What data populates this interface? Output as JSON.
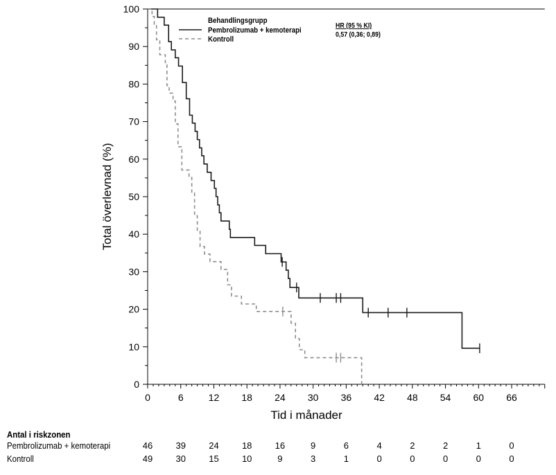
{
  "chart_data": {
    "type": "line",
    "subtype": "kaplan-meier",
    "xlabel": "Tid i månader",
    "ylabel": "Total överlevnad (%)",
    "xlim": [
      0,
      72
    ],
    "ylim": [
      0,
      100
    ],
    "xticks": [
      "0",
      "6",
      "12",
      "18",
      "24",
      "30",
      "36",
      "42",
      "48",
      "54",
      "60",
      "66"
    ],
    "yticks": [
      "0",
      "10",
      "20",
      "30",
      "40",
      "50",
      "60",
      "70",
      "80",
      "90",
      "100"
    ],
    "legend": {
      "title": "Behandlingsgrupp",
      "position": "top",
      "entries": [
        "Pembrolizumab + kemoterapi",
        "Kontroll"
      ]
    },
    "annotation": {
      "header": "HR (95 % KI)",
      "value": "0,57 (0,36; 0,89)"
    },
    "series": [
      {
        "name": "Pembrolizumab + kemoterapi",
        "color": "#1a1a1a",
        "style": "solid",
        "steps": [
          [
            0,
            100
          ],
          [
            1.8,
            97.8
          ],
          [
            3.0,
            95.7
          ],
          [
            3.8,
            91.3
          ],
          [
            4.3,
            89.1
          ],
          [
            5.0,
            87.0
          ],
          [
            5.6,
            84.8
          ],
          [
            6.3,
            80.4
          ],
          [
            7.0,
            76.1
          ],
          [
            7.6,
            71.7
          ],
          [
            8.1,
            69.6
          ],
          [
            8.6,
            67.4
          ],
          [
            9.0,
            65.2
          ],
          [
            9.4,
            63.0
          ],
          [
            9.8,
            60.9
          ],
          [
            10.2,
            58.7
          ],
          [
            10.8,
            56.5
          ],
          [
            11.5,
            54.3
          ],
          [
            12.1,
            52.2
          ],
          [
            12.4,
            50.0
          ],
          [
            12.7,
            47.8
          ],
          [
            13.0,
            45.7
          ],
          [
            13.3,
            43.5
          ],
          [
            14.8,
            41.3
          ],
          [
            15.0,
            39.1
          ],
          [
            19.4,
            37.0
          ],
          [
            21.4,
            34.8
          ],
          [
            24.2,
            32.6
          ],
          [
            25.1,
            30.4
          ],
          [
            25.5,
            28.2
          ],
          [
            25.8,
            25.8
          ],
          [
            27.4,
            23.0
          ],
          [
            39.0,
            19.1
          ],
          [
            57.0,
            9.6
          ]
        ],
        "end": 60.2,
        "censored": [
          24.4,
          27.0,
          31.3,
          34.2,
          35.0,
          40.0,
          43.6,
          47.0,
          60.2
        ]
      },
      {
        "name": "Kontroll",
        "color": "#8c8c8c",
        "style": "dashed",
        "steps": [
          [
            0,
            100
          ],
          [
            0.8,
            98.0
          ],
          [
            1.2,
            95.9
          ],
          [
            1.6,
            91.8
          ],
          [
            2.2,
            87.8
          ],
          [
            3.2,
            85.7
          ],
          [
            3.5,
            79.6
          ],
          [
            3.9,
            77.6
          ],
          [
            4.6,
            75.5
          ],
          [
            5.0,
            69.4
          ],
          [
            5.5,
            63.3
          ],
          [
            6.2,
            57.1
          ],
          [
            7.5,
            55.1
          ],
          [
            8.0,
            51.0
          ],
          [
            8.5,
            44.9
          ],
          [
            9.0,
            40.8
          ],
          [
            9.5,
            36.7
          ],
          [
            10.3,
            34.7
          ],
          [
            11.3,
            32.7
          ],
          [
            13.3,
            30.6
          ],
          [
            14.5,
            26.5
          ],
          [
            15.2,
            23.5
          ],
          [
            17.0,
            21.4
          ],
          [
            19.7,
            19.4
          ],
          [
            26.0,
            16.3
          ],
          [
            26.8,
            12.2
          ],
          [
            27.5,
            9.2
          ],
          [
            28.5,
            7.1
          ],
          [
            38.8,
            0
          ]
        ],
        "end": 38.8,
        "censored": [
          24.5,
          34.2,
          35.0
        ]
      }
    ],
    "risk_table": {
      "title": "Antal i riskzonen",
      "rows": [
        {
          "label": "Pembrolizumab + kemoterapi",
          "values": [
            "46",
            "39",
            "24",
            "18",
            "16",
            "9",
            "6",
            "4",
            "2",
            "2",
            "1",
            "0"
          ]
        },
        {
          "label": "Kontroll",
          "values": [
            "49",
            "30",
            "15",
            "10",
            "9",
            "3",
            "1",
            "0",
            "0",
            "0",
            "0",
            "0"
          ]
        }
      ]
    }
  }
}
